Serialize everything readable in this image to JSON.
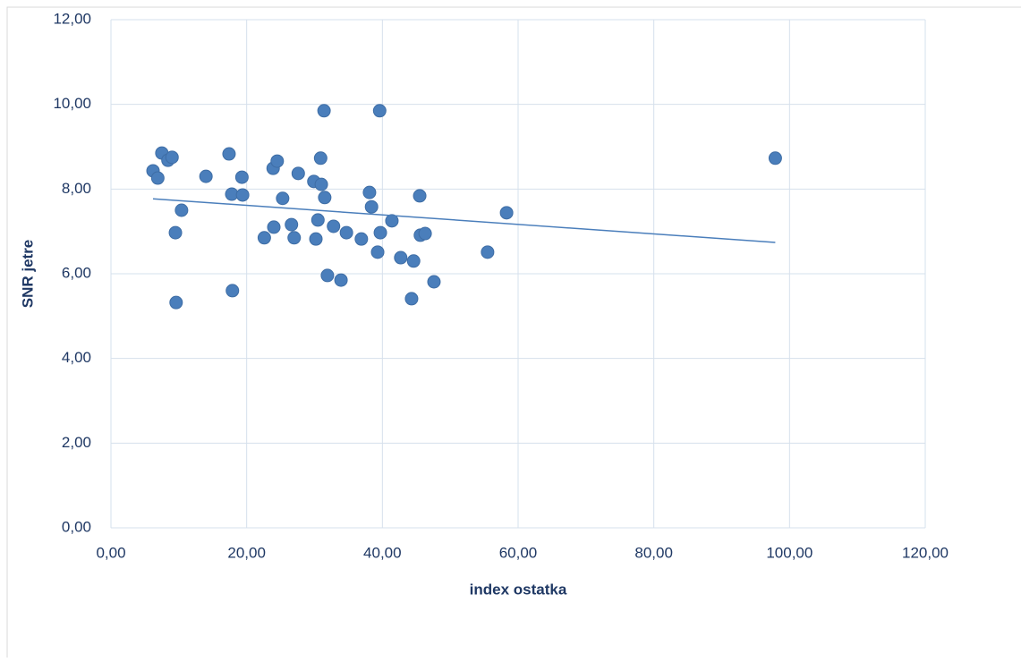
{
  "chart_data": {
    "type": "scatter",
    "x_label": "index ostatka",
    "y_label": "SNR jetre",
    "x": [
      6.2,
      6.9,
      7.5,
      8.4,
      9.0,
      9.5,
      9.6,
      10.4,
      14.0,
      17.4,
      17.8,
      17.9,
      19.3,
      19.4,
      22.6,
      23.9,
      24.0,
      24.5,
      25.3,
      26.6,
      27.0,
      27.6,
      29.9,
      30.2,
      30.5,
      30.9,
      31.0,
      31.4,
      31.5,
      31.9,
      32.8,
      33.9,
      34.7,
      36.9,
      38.1,
      38.4,
      39.3,
      39.6,
      39.7,
      41.4,
      42.7,
      44.6,
      44.3,
      45.5,
      45.6,
      46.3,
      47.6,
      55.5,
      58.3,
      97.9
    ],
    "y": [
      8.43,
      8.26,
      8.85,
      8.68,
      8.75,
      6.97,
      5.32,
      7.5,
      8.3,
      8.83,
      7.88,
      5.6,
      8.28,
      7.86,
      6.85,
      8.49,
      7.1,
      8.66,
      7.78,
      7.16,
      6.85,
      8.37,
      8.18,
      6.82,
      7.27,
      8.73,
      8.11,
      9.85,
      7.8,
      5.96,
      7.12,
      5.85,
      6.97,
      6.82,
      7.92,
      7.58,
      6.51,
      9.85,
      6.97,
      7.25,
      6.38,
      6.3,
      5.41,
      7.84,
      6.91,
      6.95,
      5.81,
      6.51,
      7.44,
      8.73
    ],
    "color": "#4a7ebb",
    "trendline": {
      "x": [
        6.2,
        97.9
      ],
      "y": [
        7.77,
        6.74
      ],
      "color": "#4a7ebb"
    },
    "xlim": [
      0,
      120
    ],
    "xticks": [
      {
        "value": 0,
        "label": "0,00"
      },
      {
        "value": 20,
        "label": "20,00"
      },
      {
        "value": 40,
        "label": "40,00"
      },
      {
        "value": 60,
        "label": "60,00"
      },
      {
        "value": 80,
        "label": "80,00"
      },
      {
        "value": 100,
        "label": "100,00"
      },
      {
        "value": 120,
        "label": "120,00"
      }
    ],
    "ylim": [
      0,
      12
    ],
    "yticks": [
      {
        "value": 0,
        "label": "0,00"
      },
      {
        "value": 2,
        "label": "2,00"
      },
      {
        "value": 4,
        "label": "4,00"
      },
      {
        "value": 6,
        "label": "6,00"
      },
      {
        "value": 8,
        "label": "8,00"
      },
      {
        "value": 10,
        "label": "10,00"
      },
      {
        "value": 12,
        "label": "12,00"
      }
    ],
    "grid": true
  }
}
